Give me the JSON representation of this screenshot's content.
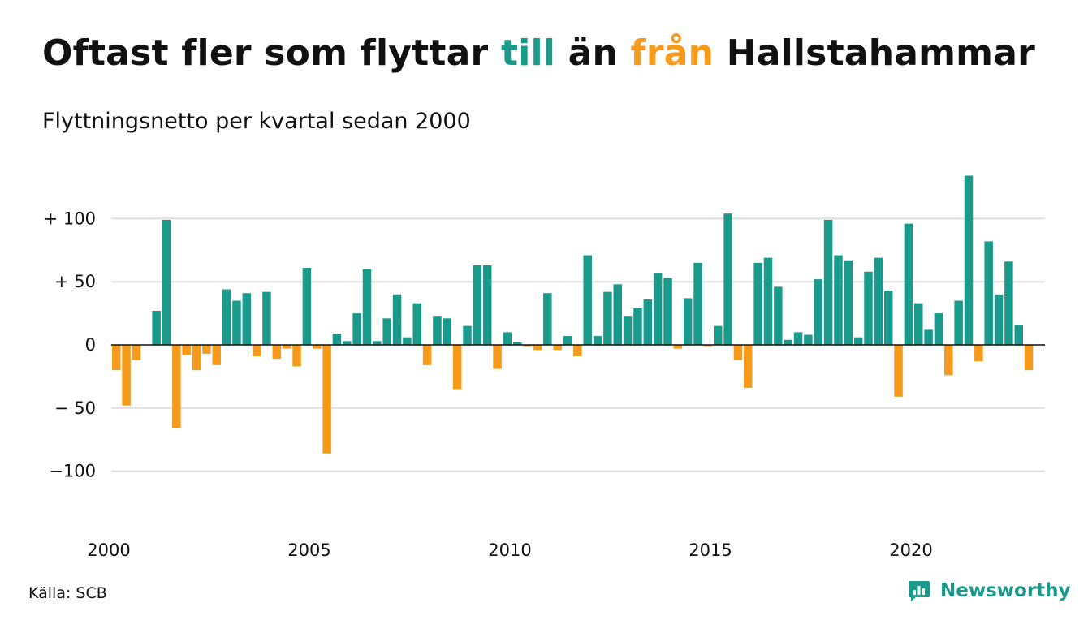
{
  "header": {
    "title_part1": "Oftast fler som flyttar ",
    "title_till": "till",
    "title_part2": " än ",
    "title_fran": "från",
    "title_part3": " Hallstahammar",
    "subtitle": "Flyttningsnetto per kvartal sedan 2000"
  },
  "colors": {
    "positive": "#1a9a8a",
    "negative": "#f59a1b",
    "grid": "#dddddd",
    "text": "#111111"
  },
  "chart_data": {
    "type": "bar",
    "title": "Oftast fler som flyttar till än från Hallstahammar",
    "subtitle": "Flyttningsnetto per kvartal sedan 2000",
    "x_start": "2000 Q1",
    "x_tick_labels": [
      "2000",
      "2005",
      "2010",
      "2015",
      "2020"
    ],
    "y_ticks": [
      100,
      50,
      0,
      -50,
      -100
    ],
    "y_tick_labels": [
      "+ 100",
      "+  50",
      "0",
      "− 50",
      "−100"
    ],
    "ylim": [
      -125,
      135
    ],
    "grid": true,
    "values": [
      -20,
      -48,
      -12,
      0,
      27,
      99,
      -66,
      -8,
      -20,
      -7,
      -16,
      44,
      35,
      41,
      -9,
      42,
      -11,
      -3,
      -17,
      61,
      -3,
      -86,
      9,
      3,
      25,
      60,
      3,
      21,
      40,
      6,
      33,
      -16,
      23,
      21,
      -35,
      15,
      63,
      63,
      -19,
      10,
      2,
      -1,
      -4,
      41,
      -4,
      7,
      -9,
      71,
      7,
      42,
      48,
      23,
      29,
      36,
      57,
      53,
      -3,
      37,
      65,
      -1,
      15,
      104,
      -12,
      -34,
      65,
      69,
      46,
      4,
      10,
      8,
      52,
      99,
      71,
      67,
      6,
      58,
      69,
      43,
      -41,
      96,
      33,
      12,
      25,
      -24,
      35,
      134,
      -13,
      82,
      40,
      66,
      16,
      -20
    ]
  },
  "footer": {
    "source": "Källa: SCB",
    "brand": "Newsworthy",
    "brand_icon": "newsworthy-logo-icon"
  }
}
